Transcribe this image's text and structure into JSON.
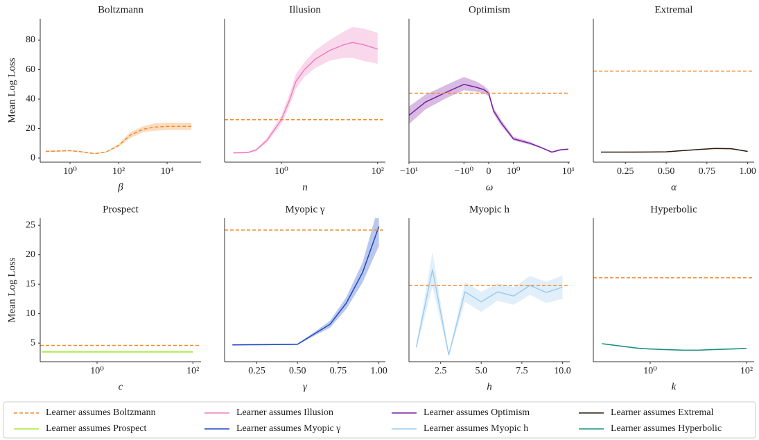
{
  "chart_data": [
    {
      "type": "line",
      "title": "Boltzmann",
      "xlabel": "β",
      "ylabel": "Mean Log Loss",
      "xscale": "log",
      "xlim": [
        0.059,
        250000
      ],
      "ylim": [
        -2.8,
        94.6
      ],
      "xticks": [
        {
          "value": 1,
          "label": "10⁰"
        },
        {
          "value": 100,
          "label": "10²"
        },
        {
          "value": 10000,
          "label": "10⁴"
        }
      ],
      "yticks": [
        0,
        20,
        40,
        60,
        80
      ],
      "series": [
        {
          "name": "Learner assumes Boltzmann",
          "color": "#f08a2e",
          "dash": true,
          "x": [
            0.1,
            0.3,
            1,
            3,
            10,
            30,
            100,
            300,
            1000,
            3000,
            10000,
            30000,
            100000
          ],
          "values": [
            4.5,
            4.7,
            5,
            4.2,
            3,
            4,
            8.5,
            15.5,
            19.5,
            21,
            21.5,
            21.5,
            21.5
          ],
          "lower": [
            4,
            4.2,
            4.6,
            3.8,
            2.7,
            3.6,
            7.5,
            13.5,
            17.5,
            18.5,
            19,
            19,
            19
          ],
          "upper": [
            5,
            5.2,
            5.4,
            4.6,
            3.3,
            4.4,
            9.5,
            17.5,
            21.5,
            23.5,
            24,
            24,
            24
          ]
        }
      ]
    },
    {
      "type": "line",
      "title": "Illusion",
      "xlabel": "n",
      "xscale": "log",
      "xlim": [
        0.066,
        145
      ],
      "ylim": [
        -2.8,
        94.6
      ],
      "xticks": [
        {
          "value": 1,
          "label": "10⁰"
        },
        {
          "value": 100,
          "label": "10²"
        }
      ],
      "series": [
        {
          "name": "Learner assumes Illusion",
          "color": "#ee7fbe",
          "x": [
            0.1,
            0.2,
            0.3,
            0.5,
            1,
            1.5,
            2,
            3,
            5,
            10,
            20,
            30,
            50,
            100
          ],
          "values": [
            3.5,
            3.7,
            5.5,
            12,
            26,
            40,
            52,
            60,
            67,
            73,
            77,
            78.5,
            77,
            74
          ],
          "lower": [
            3,
            3.2,
            4.8,
            10.5,
            23,
            36,
            47,
            55,
            61,
            66,
            68,
            68,
            66,
            64
          ],
          "upper": [
            4,
            4.2,
            6.2,
            13.5,
            29,
            44,
            57,
            65,
            73,
            80,
            86,
            89,
            88,
            85
          ]
        },
        {
          "name": "Learner assumes Boltzmann",
          "color": "#f08a2e",
          "dash": true,
          "x": [
            0.066,
            145
          ],
          "values": [
            26,
            26
          ]
        }
      ]
    },
    {
      "type": "line",
      "title": "Optimism",
      "xlabel": "ω",
      "xscale": "symlog",
      "xlim": [
        -10,
        10.6
      ],
      "ylim": [
        -2.8,
        94.6
      ],
      "xticks": [
        {
          "value": -10,
          "label": "−10¹"
        },
        {
          "value": -1,
          "label": "−10⁰"
        },
        0,
        {
          "value": 1,
          "label": "10⁰"
        },
        {
          "value": 10,
          "label": "10¹"
        }
      ],
      "series": [
        {
          "name": "Learner assumes Optimism",
          "color": "#7a1fa0",
          "x": [
            -10,
            -5,
            -2,
            -1,
            -0.5,
            -0.2,
            0,
            0.2,
            0.5,
            1,
            2,
            3,
            5,
            7,
            10
          ],
          "values": [
            29,
            38,
            45,
            50,
            48,
            46.5,
            44,
            32,
            24,
            13,
            10,
            7.5,
            4,
            5.5,
            6
          ],
          "lower": [
            23,
            33,
            41,
            46,
            45,
            44,
            42,
            30,
            22,
            12,
            9,
            7,
            3.5,
            5,
            5.5
          ],
          "upper": [
            35,
            43,
            50,
            55,
            52,
            49,
            46,
            34,
            26,
            14.5,
            11,
            8,
            4.5,
            6,
            6.5
          ]
        },
        {
          "name": "Learner assumes Boltzmann",
          "color": "#f08a2e",
          "dash": true,
          "x": [
            -10,
            10.6
          ],
          "values": [
            44,
            44
          ]
        }
      ]
    },
    {
      "type": "line",
      "title": "Extremal",
      "xlabel": "α",
      "xscale": "linear",
      "xlim": [
        0.053,
        1.04
      ],
      "ylim": [
        -2.8,
        94.6
      ],
      "xticks": [
        0.25,
        {
          "value": 0.5,
          "label": "0.50"
        },
        0.75,
        {
          "value": 1,
          "label": "1.00"
        }
      ],
      "series": [
        {
          "name": "Learner assumes Extremal",
          "color": "#2b1c0c",
          "x": [
            0.1,
            0.2,
            0.3,
            0.4,
            0.5,
            0.6,
            0.7,
            0.8,
            0.9,
            1.0
          ],
          "values": [
            4,
            4,
            4.05,
            4.1,
            4.2,
            5,
            5.8,
            6.5,
            6.3,
            4.5
          ],
          "lower": [
            3.7,
            3.7,
            3.75,
            3.8,
            3.9,
            4.7,
            5.5,
            6.1,
            5.9,
            4.2
          ],
          "upper": [
            4.3,
            4.3,
            4.35,
            4.4,
            4.5,
            5.3,
            6.1,
            6.9,
            6.7,
            4.8
          ]
        },
        {
          "name": "Learner assumes Boltzmann",
          "color": "#f08a2e",
          "dash": true,
          "x": [
            0.053,
            1.04
          ],
          "values": [
            59,
            59
          ]
        }
      ]
    },
    {
      "type": "line",
      "title": "Prospect",
      "xlabel": "c",
      "ylabel": "Mean Log Loss",
      "xscale": "log",
      "xlim": [
        0.065,
        148
      ],
      "ylim": [
        1.84,
        26.2
      ],
      "xticks": [
        {
          "value": 1,
          "label": "10⁰"
        },
        {
          "value": 100,
          "label": "10²"
        }
      ],
      "yticks": [
        5,
        10,
        15,
        20,
        25
      ],
      "series": [
        {
          "name": "Learner assumes Prospect",
          "color": "#a8e83c",
          "x": [
            0.07,
            0.1,
            1,
            10,
            100
          ],
          "values": [
            3.5,
            3.5,
            3.5,
            3.5,
            3.5
          ],
          "lower": [
            3.35,
            3.35,
            3.35,
            3.35,
            3.35
          ],
          "upper": [
            3.65,
            3.65,
            3.65,
            3.65,
            3.65
          ]
        },
        {
          "name": "Learner assumes Boltzmann",
          "color": "#f08a2e",
          "dash": true,
          "x": [
            0.065,
            148
          ],
          "values": [
            4.6,
            4.6
          ]
        }
      ]
    },
    {
      "type": "line",
      "title": "Myopic γ",
      "xlabel": "γ",
      "xscale": "linear",
      "xlim": [
        0.052,
        1.04
      ],
      "ylim": [
        1.84,
        26.2
      ],
      "xticks": [
        0.25,
        {
          "value": 0.5,
          "label": "0.50"
        },
        0.75,
        {
          "value": 1,
          "label": "1.00"
        }
      ],
      "series": [
        {
          "name": "Learner assumes Myopic γ",
          "color": "#1c45c4",
          "x": [
            0.1,
            0.2,
            0.3,
            0.4,
            0.5,
            0.6,
            0.7,
            0.8,
            0.9,
            1.0
          ],
          "values": [
            4.7,
            4.72,
            4.74,
            4.76,
            4.8,
            6.5,
            8.2,
            11.8,
            17,
            24.8
          ],
          "lower": [
            4.6,
            4.62,
            4.64,
            4.66,
            4.7,
            6.2,
            7.6,
            10.8,
            15.3,
            21.5
          ],
          "upper": [
            4.8,
            4.82,
            4.84,
            4.86,
            4.9,
            6.8,
            8.8,
            12.8,
            18.7,
            28.5
          ]
        },
        {
          "name": "Learner assumes Boltzmann",
          "color": "#f08a2e",
          "dash": true,
          "x": [
            0.052,
            1.04
          ],
          "values": [
            24.2,
            24.2
          ]
        }
      ]
    },
    {
      "type": "line",
      "title": "Myopic h",
      "xlabel": "h",
      "xscale": "linear",
      "xlim": [
        0.55,
        10.45
      ],
      "ylim": [
        1.84,
        26.2
      ],
      "xticks": [
        2.5,
        {
          "value": 5,
          "label": "5.0"
        },
        7.5,
        {
          "value": 10,
          "label": "10.0"
        }
      ],
      "series": [
        {
          "name": "Learner assumes Myopic h",
          "color": "#9ccbf0",
          "x": [
            1,
            2,
            3,
            4,
            5,
            6,
            7,
            8,
            9,
            10
          ],
          "values": [
            4.3,
            17.5,
            3,
            13.7,
            12,
            13.7,
            13,
            14.8,
            13.6,
            14.5
          ],
          "lower": [
            4,
            14.5,
            2.8,
            12,
            10.3,
            12.2,
            11.5,
            13.2,
            11.8,
            12.5
          ],
          "upper": [
            4.6,
            20.5,
            3.2,
            15.4,
            13.7,
            15.2,
            14.5,
            16.4,
            15.4,
            16.5
          ]
        },
        {
          "name": "Learner assumes Boltzmann",
          "color": "#f08a2e",
          "dash": true,
          "x": [
            0.55,
            10.45
          ],
          "values": [
            14.8,
            14.8
          ]
        }
      ]
    },
    {
      "type": "line",
      "title": "Hyperbolic",
      "xlabel": "k",
      "xscale": "log",
      "xlim": [
        0.066,
        144
      ],
      "ylim": [
        1.84,
        26.2
      ],
      "xticks": [
        {
          "value": 1,
          "label": "10⁰"
        },
        {
          "value": 100,
          "label": "10²"
        }
      ],
      "series": [
        {
          "name": "Learner assumes Hyperbolic",
          "color": "#1b8f7e",
          "x": [
            0.1,
            0.3,
            0.6,
            1,
            2,
            5,
            10,
            20,
            50,
            100
          ],
          "values": [
            4.9,
            4.4,
            4.1,
            4.0,
            3.9,
            3.8,
            3.8,
            3.9,
            4.0,
            4.1
          ],
          "lower": [
            4.8,
            4.3,
            4.0,
            3.9,
            3.8,
            3.7,
            3.7,
            3.8,
            3.9,
            4.0
          ],
          "upper": [
            5.0,
            4.5,
            4.2,
            4.1,
            4.0,
            3.9,
            3.9,
            4.0,
            4.1,
            4.2
          ]
        },
        {
          "name": "Learner assumes Boltzmann",
          "color": "#f08a2e",
          "dash": true,
          "x": [
            0.066,
            144
          ],
          "values": [
            16.1,
            16.1
          ]
        }
      ]
    }
  ]
}
